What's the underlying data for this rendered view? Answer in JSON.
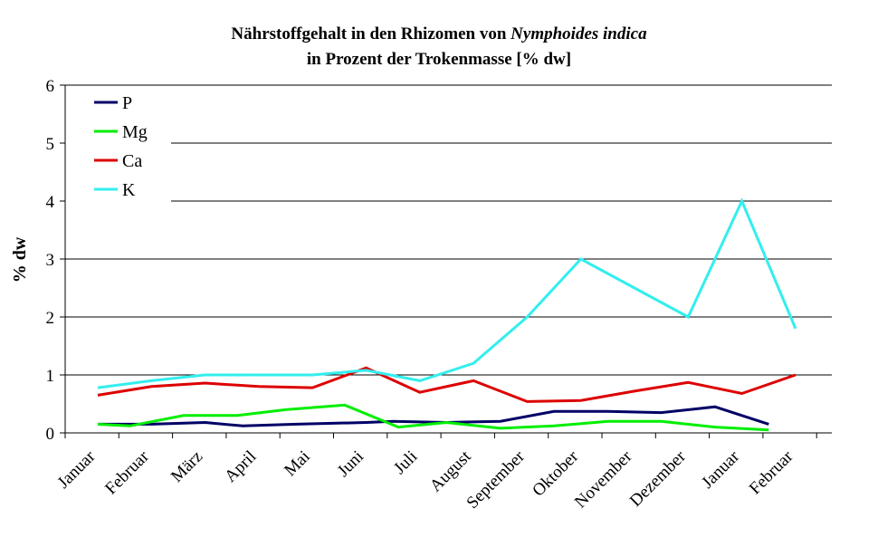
{
  "chart_data": {
    "type": "line",
    "title_line1_prefix": "Nährstoffgehalt in den Rhizomen von ",
    "title_line1_italic": "Nymphoides indica",
    "title_line2": "in Prozent der Trokenmasse [% dw]",
    "ylabel": "% dw",
    "xlabel": "",
    "ylim": [
      0,
      6
    ],
    "yticks": [
      "0",
      "1",
      "2",
      "3",
      "4",
      "5",
      "6"
    ],
    "categories": [
      "Januar",
      "Februar",
      "März",
      "April",
      "Mai",
      "Juni",
      "Juli",
      "August",
      "September",
      "Oktober",
      "November",
      "Dezember",
      "Januar",
      "Februar"
    ],
    "grid": true,
    "legend_position": "top-left",
    "series": [
      {
        "name": "P",
        "color": "#000066",
        "x": [
          0,
          1,
          2,
          2.7,
          3.7,
          5,
          5.5,
          6.5,
          7.5,
          8.5,
          9.5,
          10.5,
          11.5,
          12.5
        ],
        "values": [
          0.15,
          0.15,
          0.18,
          0.12,
          0.15,
          0.18,
          0.2,
          0.18,
          0.2,
          0.37,
          0.37,
          0.35,
          0.45,
          0.15
        ]
      },
      {
        "name": "Mg",
        "color": "#00ee00",
        "x": [
          0,
          0.6,
          1.6,
          2.6,
          3.5,
          4.6,
          5.6,
          6.5,
          7.5,
          8.5,
          9.5,
          10.5,
          11.5,
          12.5
        ],
        "values": [
          0.15,
          0.12,
          0.3,
          0.3,
          0.4,
          0.48,
          0.1,
          0.18,
          0.08,
          0.12,
          0.2,
          0.2,
          0.1,
          0.05
        ]
      },
      {
        "name": "Ca",
        "color": "#dd0000",
        "x": [
          0,
          1,
          2,
          3,
          4,
          5,
          6,
          7,
          8,
          9,
          10,
          11,
          12,
          13
        ],
        "values": [
          0.65,
          0.8,
          0.86,
          0.8,
          0.78,
          1.12,
          0.7,
          0.9,
          0.54,
          0.56,
          0.72,
          0.87,
          0.68,
          1.0
        ]
      },
      {
        "name": "K",
        "color": "#33eeee",
        "x": [
          0,
          1,
          2,
          3,
          4,
          5,
          6,
          7,
          8,
          9,
          10,
          11,
          12,
          13
        ],
        "values": [
          0.78,
          0.9,
          1.0,
          1.0,
          1.0,
          1.08,
          0.9,
          1.2,
          2.0,
          3.0,
          2.5,
          2.0,
          4.0,
          1.8
        ]
      }
    ]
  }
}
